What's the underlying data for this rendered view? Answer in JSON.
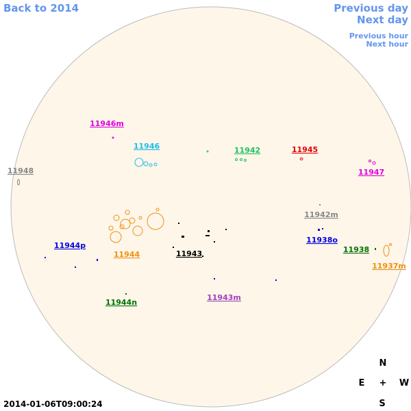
{
  "nav": {
    "back": "Back to 2014",
    "previous_day": "Previous day",
    "next_day": "Next day",
    "previous_hour": "Previous hour",
    "next_hour": "Next hour"
  },
  "regions": [
    {
      "label": "11946m"
    },
    {
      "label": "11946"
    },
    {
      "label": "11942"
    },
    {
      "label": "11945"
    },
    {
      "label": "11947"
    },
    {
      "label": "11948"
    },
    {
      "label": "11942m"
    },
    {
      "label": "11938o"
    },
    {
      "label": "11944p"
    },
    {
      "label": "11944"
    },
    {
      "label": "11943"
    },
    {
      "label": "11938"
    },
    {
      "label": "11937m"
    },
    {
      "label": "11944n"
    },
    {
      "label": "11943m"
    }
  ],
  "compass": {
    "north": "N",
    "east": "E",
    "center": "+",
    "west": "W",
    "south": "S"
  },
  "timestamp": "2014-01-06T09:00:24"
}
